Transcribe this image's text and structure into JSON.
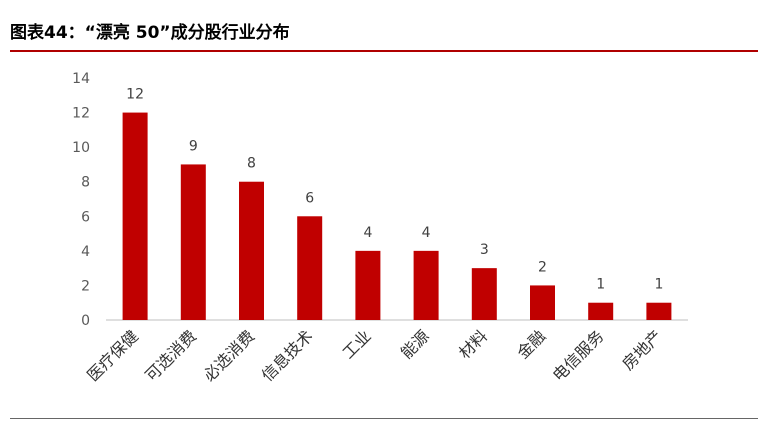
{
  "title": "图表44：“漂亮 50”成分股行业分布",
  "colors": {
    "bar": "#C00000",
    "axis": "#BFBFBF",
    "title_rule": "#B00000"
  },
  "chart_data": {
    "type": "bar",
    "categories": [
      "医疗保健",
      "可选消费",
      "必选消费",
      "信息技术",
      "工业",
      "能源",
      "材料",
      "金融",
      "电信服务",
      "房地产"
    ],
    "values": [
      12,
      9,
      8,
      6,
      4,
      4,
      3,
      2,
      1,
      1
    ],
    "data_labels": [
      "12",
      "9",
      "8",
      "6",
      "4",
      "4",
      "3",
      "2",
      "1",
      "1"
    ],
    "y_ticks": [
      "0",
      "2",
      "4",
      "6",
      "8",
      "10",
      "12",
      "14"
    ],
    "ylim": [
      0,
      14
    ],
    "grid": false,
    "legend": "none"
  }
}
